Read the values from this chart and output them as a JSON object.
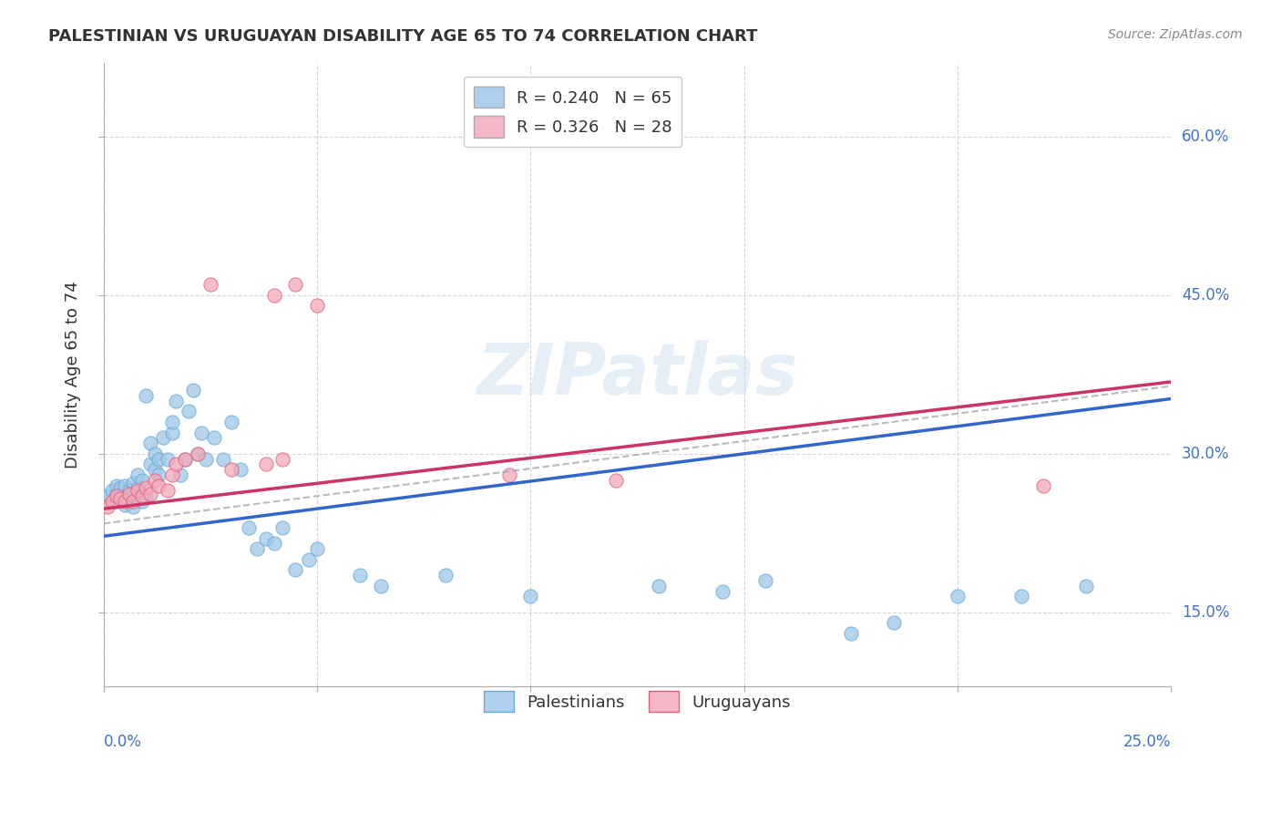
{
  "title": "PALESTINIAN VS URUGUAYAN DISABILITY AGE 65 TO 74 CORRELATION CHART",
  "source": "Source: ZipAtlas.com",
  "ylabel": "Disability Age 65 to 74",
  "ytick_values": [
    0.15,
    0.3,
    0.45,
    0.6
  ],
  "ytick_labels": [
    "15.0%",
    "30.0%",
    "45.0%",
    "60.0%"
  ],
  "xlim": [
    0.0,
    0.25
  ],
  "ylim": [
    0.08,
    0.67
  ],
  "watermark": "ZIPatlas",
  "series1_name": "Palestinians",
  "series1_color": "#9ec8e8",
  "series1_edge": "#6aaad4",
  "series2_name": "Uruguayans",
  "series2_color": "#f4a8b8",
  "series2_edge": "#e06080",
  "trend1_color": "#3366cc",
  "trend2_color": "#cc3366",
  "trend_dashed_color": "#aaaaaa",
  "R1": 0.24,
  "N1": 65,
  "R2": 0.326,
  "N2": 28,
  "legend1_color": "#aed0ee",
  "legend2_color": "#f4b8c8",
  "palestinians_x": [
    0.001,
    0.002,
    0.002,
    0.003,
    0.003,
    0.003,
    0.004,
    0.004,
    0.005,
    0.005,
    0.005,
    0.006,
    0.006,
    0.007,
    0.007,
    0.007,
    0.008,
    0.008,
    0.008,
    0.009,
    0.009,
    0.01,
    0.01,
    0.011,
    0.011,
    0.012,
    0.012,
    0.013,
    0.013,
    0.014,
    0.015,
    0.016,
    0.016,
    0.017,
    0.018,
    0.019,
    0.02,
    0.021,
    0.022,
    0.023,
    0.024,
    0.026,
    0.028,
    0.03,
    0.032,
    0.034,
    0.036,
    0.038,
    0.04,
    0.042,
    0.045,
    0.048,
    0.05,
    0.06,
    0.065,
    0.08,
    0.1,
    0.13,
    0.145,
    0.155,
    0.175,
    0.185,
    0.2,
    0.215,
    0.23
  ],
  "palestinians_y": [
    0.26,
    0.255,
    0.265,
    0.255,
    0.262,
    0.27,
    0.258,
    0.268,
    0.252,
    0.26,
    0.27,
    0.255,
    0.265,
    0.25,
    0.26,
    0.272,
    0.258,
    0.268,
    0.28,
    0.255,
    0.275,
    0.26,
    0.355,
    0.29,
    0.31,
    0.285,
    0.3,
    0.28,
    0.295,
    0.315,
    0.295,
    0.32,
    0.33,
    0.35,
    0.28,
    0.295,
    0.34,
    0.36,
    0.3,
    0.32,
    0.295,
    0.315,
    0.295,
    0.33,
    0.285,
    0.23,
    0.21,
    0.22,
    0.215,
    0.23,
    0.19,
    0.2,
    0.21,
    0.185,
    0.175,
    0.185,
    0.165,
    0.175,
    0.17,
    0.18,
    0.13,
    0.14,
    0.165,
    0.165,
    0.175
  ],
  "uruguayans_x": [
    0.001,
    0.002,
    0.003,
    0.004,
    0.005,
    0.006,
    0.007,
    0.008,
    0.009,
    0.01,
    0.011,
    0.012,
    0.013,
    0.015,
    0.016,
    0.017,
    0.019,
    0.022,
    0.025,
    0.03,
    0.038,
    0.04,
    0.042,
    0.045,
    0.05,
    0.095,
    0.12,
    0.22
  ],
  "uruguayans_y": [
    0.25,
    0.255,
    0.26,
    0.258,
    0.255,
    0.262,
    0.255,
    0.265,
    0.26,
    0.268,
    0.262,
    0.275,
    0.27,
    0.265,
    0.28,
    0.29,
    0.295,
    0.3,
    0.46,
    0.285,
    0.29,
    0.45,
    0.295,
    0.46,
    0.44,
    0.28,
    0.275,
    0.27
  ],
  "trend1_intercept": 0.222,
  "trend1_slope": 0.52,
  "trend2_intercept": 0.248,
  "trend2_slope": 0.48
}
